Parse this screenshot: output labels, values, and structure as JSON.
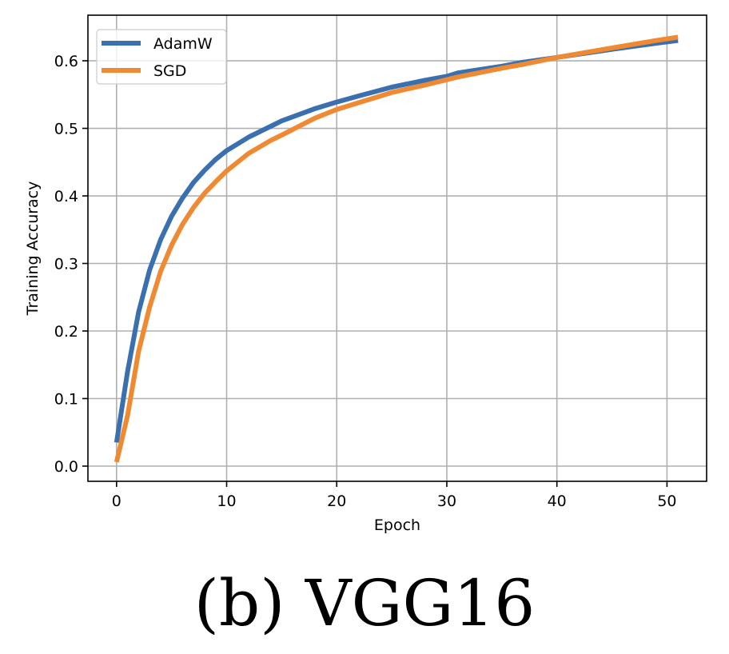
{
  "figure": {
    "caption": "(b)  VGG16"
  },
  "colors": {
    "adamw": "#3a6fb0",
    "sgd": "#ef8a32",
    "grid": "#b0b0b0",
    "axes": "#000000"
  },
  "chart_data": {
    "type": "line",
    "title": "",
    "xlabel": "Epoch",
    "ylabel": "Training Accuracy",
    "xlim": [
      -2.6,
      53.6
    ],
    "ylim": [
      -0.0225,
      0.6675
    ],
    "xticks": [
      0,
      10,
      20,
      30,
      40,
      50
    ],
    "xtick_labels": [
      "0",
      "10",
      "20",
      "30",
      "40",
      "50"
    ],
    "yticks": [
      0.0,
      0.1,
      0.2,
      0.3,
      0.4,
      0.5,
      0.6
    ],
    "ytick_labels": [
      "0.0",
      "0.1",
      "0.2",
      "0.3",
      "0.4",
      "0.5",
      "0.6"
    ],
    "grid": true,
    "legend_position": "top-left",
    "series": [
      {
        "name": "AdamW",
        "color": "#3a6fb0",
        "x": [
          0,
          1,
          2,
          3,
          4,
          5,
          6,
          7,
          8,
          9,
          10,
          12,
          14,
          15,
          18,
          20,
          22,
          25,
          28,
          30,
          31,
          35,
          37,
          40,
          45,
          49,
          51
        ],
        "y": [
          0.035,
          0.14,
          0.228,
          0.29,
          0.335,
          0.37,
          0.397,
          0.42,
          0.438,
          0.454,
          0.467,
          0.487,
          0.503,
          0.511,
          0.529,
          0.539,
          0.548,
          0.561,
          0.571,
          0.577,
          0.582,
          0.592,
          0.598,
          0.605,
          0.617,
          0.626,
          0.63
        ]
      },
      {
        "name": "SGD",
        "color": "#ef8a32",
        "x": [
          0,
          1,
          2,
          3,
          4,
          5,
          6,
          7,
          8,
          9,
          10,
          12,
          14,
          15,
          18,
          20,
          22,
          25,
          28,
          30,
          31,
          35,
          37,
          40,
          45,
          49,
          51
        ],
        "y": [
          0.006,
          0.075,
          0.17,
          0.235,
          0.288,
          0.327,
          0.358,
          0.383,
          0.404,
          0.421,
          0.437,
          0.463,
          0.482,
          0.49,
          0.515,
          0.528,
          0.538,
          0.553,
          0.564,
          0.572,
          0.576,
          0.589,
          0.595,
          0.605,
          0.619,
          0.63,
          0.635
        ]
      }
    ]
  }
}
